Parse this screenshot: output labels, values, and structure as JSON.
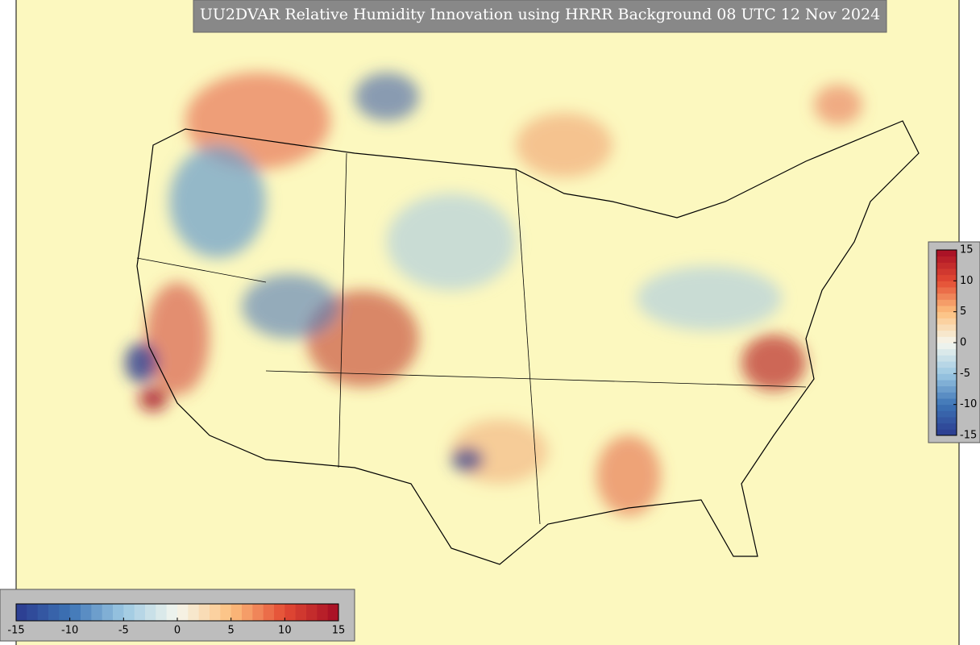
{
  "title": "UU2DVAR Relative Humidity Innovation using HRRR Background 08 UTC 12 Nov 2024",
  "colormap": [
    "#2b3a8f",
    "#3d74b5",
    "#9cc8e2",
    "#f5f7ee",
    "#fdc07e",
    "#e34a33",
    "#a50d24"
  ],
  "colorbars": [
    {
      "orientation": "horizontal",
      "lim": [
        -15,
        15
      ],
      "ticks": [
        -15,
        -10,
        -5,
        0,
        5,
        10,
        15
      ]
    },
    {
      "orientation": "vertical",
      "lim": [
        -15,
        15
      ],
      "ticks": [
        -15,
        -10,
        -5,
        0,
        5,
        10,
        15
      ]
    }
  ]
}
